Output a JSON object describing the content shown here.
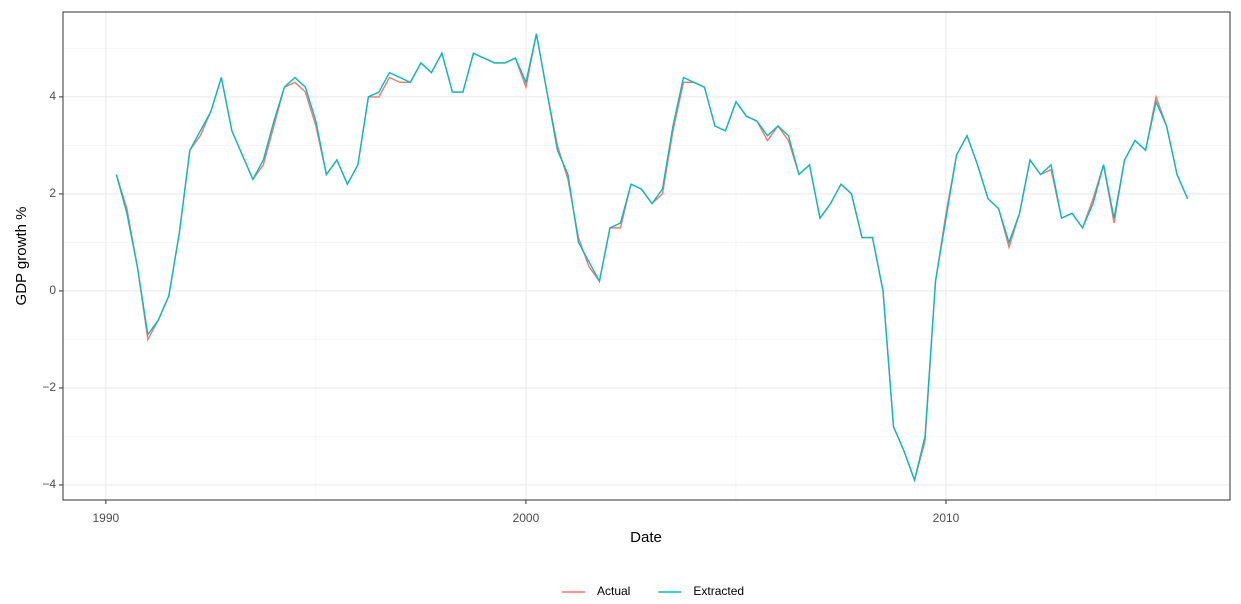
{
  "chart_data": {
    "type": "line",
    "xlabel": "Date",
    "ylabel": "GDP growth %",
    "x": [
      1990.25,
      1990.5,
      1990.75,
      1991,
      1991.25,
      1991.5,
      1991.75,
      1992,
      1992.25,
      1992.5,
      1992.75,
      1993,
      1993.25,
      1993.5,
      1993.75,
      1994,
      1994.25,
      1994.5,
      1994.75,
      1995,
      1995.25,
      1995.5,
      1995.75,
      1996,
      1996.25,
      1996.5,
      1996.75,
      1997,
      1997.25,
      1997.5,
      1997.75,
      1998,
      1998.25,
      1998.5,
      1998.75,
      1999,
      1999.25,
      1999.5,
      1999.75,
      2000,
      2000.25,
      2000.5,
      2000.75,
      2001,
      2001.25,
      2001.5,
      2001.75,
      2002,
      2002.25,
      2002.5,
      2002.75,
      2003,
      2003.25,
      2003.5,
      2003.75,
      2004,
      2004.25,
      2004.5,
      2004.75,
      2005,
      2005.25,
      2005.5,
      2005.75,
      2006,
      2006.25,
      2006.5,
      2006.75,
      2007,
      2007.25,
      2007.5,
      2007.75,
      2008,
      2008.25,
      2008.5,
      2008.75,
      2009,
      2009.25,
      2009.5,
      2009.75,
      2010,
      2010.25,
      2010.5,
      2010.75,
      2011,
      2011.25,
      2011.5,
      2011.75,
      2012,
      2012.25,
      2012.5,
      2012.75,
      2013,
      2013.25,
      2013.5,
      2013.75,
      2014,
      2014.25,
      2014.5,
      2014.75,
      2015,
      2015.25,
      2015.5,
      2015.75
    ],
    "series": [
      {
        "name": "Actual",
        "color": "#F8766D",
        "values": [
          2.4,
          1.7,
          0.5,
          -1.0,
          -0.6,
          -0.1,
          1.2,
          2.9,
          3.2,
          3.7,
          4.4,
          3.3,
          2.8,
          2.3,
          2.6,
          3.4,
          4.2,
          4.3,
          4.1,
          3.4,
          2.4,
          2.7,
          2.2,
          2.6,
          4.0,
          4.0,
          4.4,
          4.3,
          4.3,
          4.7,
          4.5,
          4.9,
          4.1,
          4.1,
          4.9,
          4.8,
          4.7,
          4.7,
          4.8,
          4.2,
          5.3,
          4.1,
          3.0,
          2.3,
          1.1,
          0.5,
          0.2,
          1.3,
          1.3,
          2.2,
          2.1,
          1.8,
          2.0,
          3.3,
          4.3,
          4.3,
          4.2,
          3.4,
          3.3,
          3.9,
          3.6,
          3.5,
          3.1,
          3.4,
          3.1,
          2.4,
          2.6,
          1.5,
          1.8,
          2.2,
          2.0,
          1.1,
          1.1,
          0.0,
          -2.8,
          -3.3,
          -3.9,
          -3.1,
          0.2,
          1.6,
          2.8,
          3.2,
          2.6,
          1.9,
          1.7,
          0.9,
          1.6,
          2.7,
          2.4,
          2.5,
          1.5,
          1.6,
          1.3,
          1.9,
          2.6,
          1.4,
          2.7,
          3.1,
          2.9,
          4.0,
          3.4,
          2.4,
          1.9
        ]
      },
      {
        "name": "Extracted",
        "color": "#00BFC4",
        "values": [
          2.4,
          1.6,
          0.5,
          -0.9,
          -0.6,
          -0.1,
          1.2,
          2.9,
          3.3,
          3.7,
          4.4,
          3.3,
          2.8,
          2.3,
          2.7,
          3.5,
          4.2,
          4.4,
          4.2,
          3.5,
          2.4,
          2.7,
          2.2,
          2.6,
          4.0,
          4.1,
          4.5,
          4.4,
          4.3,
          4.7,
          4.5,
          4.9,
          4.1,
          4.1,
          4.9,
          4.8,
          4.7,
          4.7,
          4.8,
          4.3,
          5.3,
          4.1,
          2.9,
          2.4,
          1.0,
          0.6,
          0.2,
          1.3,
          1.4,
          2.2,
          2.1,
          1.8,
          2.1,
          3.4,
          4.4,
          4.3,
          4.2,
          3.4,
          3.3,
          3.9,
          3.6,
          3.5,
          3.2,
          3.4,
          3.2,
          2.4,
          2.6,
          1.5,
          1.8,
          2.2,
          2.0,
          1.1,
          1.1,
          0.0,
          -2.8,
          -3.3,
          -3.9,
          -3.0,
          0.2,
          1.5,
          2.8,
          3.2,
          2.6,
          1.9,
          1.7,
          1.0,
          1.6,
          2.7,
          2.4,
          2.6,
          1.5,
          1.6,
          1.3,
          1.8,
          2.6,
          1.5,
          2.7,
          3.1,
          2.9,
          3.9,
          3.4,
          2.4,
          1.9
        ]
      }
    ],
    "xlim": [
      1988.98,
      2016.76
    ],
    "ylim": [
      -4.31,
      5.75
    ],
    "xticks": [
      1990,
      2000,
      2010
    ],
    "yticks": [
      {
        "value": -4,
        "label": "−4"
      },
      {
        "value": -2,
        "label": "−2"
      },
      0,
      2,
      4
    ],
    "x_minor_grid": [
      1995,
      2005,
      2015
    ],
    "y_minor_grid": [
      -3,
      -1,
      1,
      3,
      5
    ],
    "grid": true,
    "legend": "bottom"
  }
}
